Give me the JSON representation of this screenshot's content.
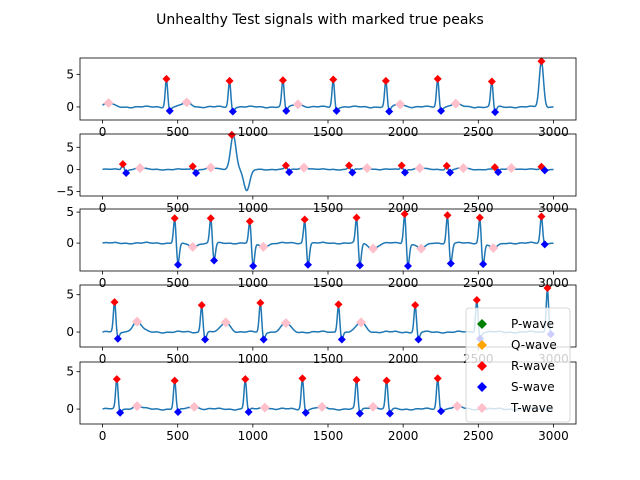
{
  "title": "Unhealthy Test signals with marked true peaks",
  "colors": {
    "signal": "#1f77b4",
    "P-wave": "#008000",
    "Q-wave": "#ffa500",
    "R-wave": "#ff0000",
    "S-wave": "#0000ff",
    "T-wave": "#ffc0cb"
  },
  "legend": {
    "placement": "right, overlapping lower panels",
    "entries": [
      "P-wave",
      "Q-wave",
      "R-wave",
      "S-wave",
      "T-wave"
    ]
  },
  "chart_data": [
    {
      "type": "line",
      "xlim": [
        -150,
        3150
      ],
      "ylim": [
        -2,
        7.5
      ],
      "xticks": [
        0,
        500,
        1000,
        1500,
        2000,
        2500,
        3000
      ],
      "xtick_labels": [
        "0",
        "500",
        "1000",
        "1500",
        "2000",
        "2500",
        "3000"
      ],
      "yticks": [
        0,
        5
      ],
      "ytick_labels": [
        "0",
        "5"
      ],
      "baseline": 0,
      "beats": [
        {
          "x": 425,
          "r": 4.3,
          "s": -0.6
        },
        {
          "x": 845,
          "r": 4.0,
          "s": -0.7
        },
        {
          "x": 1200,
          "r": 4.1,
          "s": -0.6
        },
        {
          "x": 1535,
          "r": 4.2,
          "s": -0.6
        },
        {
          "x": 1885,
          "r": 4.0,
          "s": -0.7
        },
        {
          "x": 2230,
          "r": 4.3,
          "s": -0.6
        },
        {
          "x": 2590,
          "r": 3.9,
          "s": -0.8
        }
      ],
      "t_waves": [
        {
          "x": 40,
          "y": 0.6
        },
        {
          "x": 560,
          "y": 0.7
        },
        {
          "x": 1300,
          "y": 0.4
        },
        {
          "x": 1980,
          "y": 0.4
        },
        {
          "x": 2350,
          "y": 0.5
        }
      ],
      "extra_r": [
        {
          "x": 2920,
          "y": 7.0
        }
      ]
    },
    {
      "type": "line",
      "xlim": [
        -150,
        3150
      ],
      "ylim": [
        -6,
        8
      ],
      "xticks": [
        0,
        500,
        1000,
        1500,
        2000,
        2500,
        3000
      ],
      "xtick_labels": [
        "0",
        "500",
        "1000",
        "1500",
        "2000",
        "2500",
        "3000"
      ],
      "yticks": [
        -5,
        0,
        5
      ],
      "ytick_labels": [
        "−5",
        "0",
        "5"
      ],
      "baseline": 0,
      "beats": [
        {
          "x": 135,
          "r": 1.2,
          "s": -0.8
        },
        {
          "x": 600,
          "r": 0.7,
          "s": -0.8
        },
        {
          "x": 1220,
          "r": 0.9,
          "s": -0.6
        },
        {
          "x": 1640,
          "r": 0.9,
          "s": -0.7
        },
        {
          "x": 1990,
          "r": 0.9,
          "s": -0.7
        },
        {
          "x": 2290,
          "r": 0.8,
          "s": -0.7
        },
        {
          "x": 2610,
          "r": 0.5,
          "s": -0.6
        },
        {
          "x": 2920,
          "r": 0.6,
          "s": -0.2
        }
      ],
      "t_waves": [
        {
          "x": 250,
          "y": 0.3
        },
        {
          "x": 720,
          "y": 0.4
        },
        {
          "x": 1340,
          "y": 0.4
        },
        {
          "x": 1760,
          "y": 0.3
        },
        {
          "x": 2110,
          "y": 0.3
        },
        {
          "x": 2400,
          "y": 0.3
        },
        {
          "x": 2720,
          "y": 0.3
        }
      ],
      "artifact": {
        "x": 870,
        "peak": 7.8,
        "trough": -4.8
      },
      "extra_r": [
        {
          "x": 860,
          "y": 7.8
        }
      ]
    },
    {
      "type": "line",
      "xlim": [
        -150,
        3150
      ],
      "ylim": [
        -4.5,
        5.5
      ],
      "xticks": [
        0,
        500,
        1000,
        1500,
        2000,
        2500,
        3000
      ],
      "xtick_labels": [
        "0",
        "500",
        "1000",
        "1500",
        "2000",
        "2500",
        "3000"
      ],
      "yticks": [
        0,
        5
      ],
      "ytick_labels": [
        "0",
        "5"
      ],
      "baseline": 0,
      "beats": [
        {
          "x": 480,
          "r": 4.0,
          "s": -3.5
        },
        {
          "x": 720,
          "r": 4.0,
          "s": -2.8
        },
        {
          "x": 980,
          "r": 3.5,
          "s": -3.7
        },
        {
          "x": 1345,
          "r": 3.8,
          "s": -3.5
        },
        {
          "x": 1690,
          "r": 4.1,
          "s": -3.6
        },
        {
          "x": 2010,
          "r": 4.7,
          "s": -3.7
        },
        {
          "x": 2295,
          "r": 4.5,
          "s": -3.3
        },
        {
          "x": 2510,
          "r": 4.1,
          "s": -3.4
        },
        {
          "x": 2920,
          "r": 4.3,
          "s": -0.2
        }
      ],
      "t_waves": [
        {
          "x": 600,
          "y": -0.6
        },
        {
          "x": 1070,
          "y": -0.6
        },
        {
          "x": 1800,
          "y": -0.9
        },
        {
          "x": 2120,
          "y": -0.9
        },
        {
          "x": 2600,
          "y": -0.8
        }
      ],
      "extra_r": []
    },
    {
      "type": "line",
      "xlim": [
        -150,
        3150
      ],
      "ylim": [
        -2,
        6.3
      ],
      "xticks": [
        0,
        500,
        1000,
        1500,
        2000,
        2500,
        3000
      ],
      "xtick_labels": [
        "0",
        "500",
        "1000",
        "1500",
        "2000",
        "2500",
        "3000"
      ],
      "yticks": [
        0,
        5
      ],
      "ytick_labels": [
        "0",
        "5"
      ],
      "baseline": 0,
      "beats": [
        {
          "x": 80,
          "r": 4.0,
          "s": -0.9
        },
        {
          "x": 660,
          "r": 3.6,
          "s": -1.0
        },
        {
          "x": 1050,
          "r": 3.9,
          "s": -1.0
        },
        {
          "x": 1570,
          "r": 3.7,
          "s": -1.0
        },
        {
          "x": 2080,
          "r": 3.6,
          "s": -1.0
        },
        {
          "x": 2490,
          "r": 4.3,
          "s": -0.9
        },
        {
          "x": 2960,
          "r": 5.9,
          "s": -0.3
        }
      ],
      "t_waves": [
        {
          "x": 230,
          "y": 1.4
        },
        {
          "x": 820,
          "y": 1.3
        },
        {
          "x": 1220,
          "y": 1.2
        },
        {
          "x": 1720,
          "y": 1.3
        }
      ],
      "extra_r": []
    },
    {
      "type": "line",
      "xlim": [
        -150,
        3150
      ],
      "ylim": [
        -2,
        6.3
      ],
      "xticks": [
        0,
        500,
        1000,
        1500,
        2000,
        2500,
        3000
      ],
      "xtick_labels": [
        "0",
        "500",
        "1000",
        "1500",
        "2000",
        "2500",
        "3000"
      ],
      "yticks": [
        0,
        5
      ],
      "ytick_labels": [
        "0",
        "5"
      ],
      "baseline": 0,
      "beats": [
        {
          "x": 95,
          "r": 4.0,
          "s": -0.5
        },
        {
          "x": 480,
          "r": 3.8,
          "s": -0.4
        },
        {
          "x": 950,
          "r": 4.0,
          "s": -0.4
        },
        {
          "x": 1330,
          "r": 4.1,
          "s": -0.5
        },
        {
          "x": 1690,
          "r": 3.9,
          "s": -0.6
        },
        {
          "x": 1890,
          "r": 3.8,
          "s": -0.6
        },
        {
          "x": 2230,
          "r": 4.1,
          "s": -0.3
        }
      ],
      "t_waves": [
        {
          "x": 230,
          "y": 0.4
        },
        {
          "x": 610,
          "y": 0.3
        },
        {
          "x": 1080,
          "y": 0.2
        },
        {
          "x": 1460,
          "y": 0.3
        },
        {
          "x": 1800,
          "y": 0.3
        },
        {
          "x": 2360,
          "y": 0.4
        }
      ],
      "extra_r": []
    }
  ]
}
